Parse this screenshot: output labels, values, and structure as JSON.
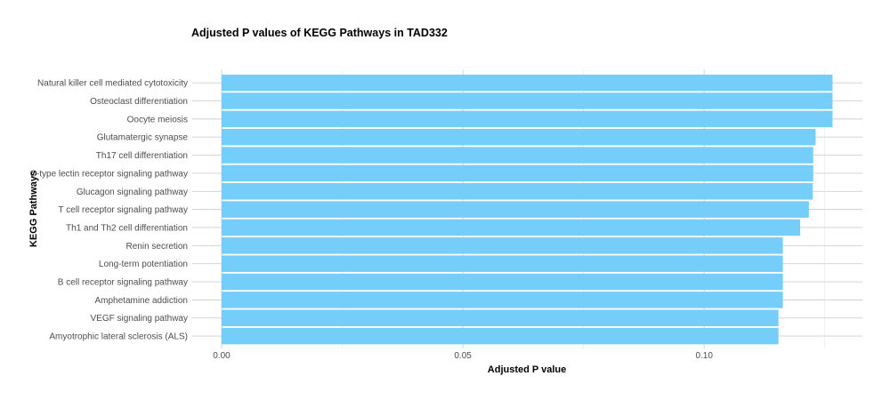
{
  "chart_data": {
    "type": "bar",
    "orientation": "horizontal",
    "title": "Adjusted P values of KEGG Pathways in TAD332",
    "xlabel": "Adjusted P value",
    "ylabel": "KEGG Pathways",
    "xlim": [
      0,
      0.1335
    ],
    "xticks": [
      0.0,
      0.05,
      0.1
    ],
    "xtick_labels": [
      "0.00",
      "0.05",
      "0.10"
    ],
    "grid": true,
    "bar_color": "#75CDF9",
    "categories": [
      "Natural killer cell mediated cytotoxicity",
      "Osteoclast differentiation",
      "Oocyte meiosis",
      "Glutamatergic synapse",
      "Th17 cell differentiation",
      "C-type lectin receptor signaling pathway",
      "Glucagon signaling pathway",
      "T cell receptor signaling pathway",
      "Th1 and Th2 cell differentiation",
      "Renin secretion",
      "Long-term potentiation",
      "B cell receptor signaling pathway",
      "Amphetamine addiction",
      "VEGF signaling pathway",
      "Amyotrophic lateral sclerosis (ALS)"
    ],
    "values": [
      0.1266,
      0.1266,
      0.1266,
      0.1231,
      0.1226,
      0.1226,
      0.1225,
      0.1217,
      0.1199,
      0.1163,
      0.1163,
      0.1163,
      0.1163,
      0.1154,
      0.1154
    ]
  }
}
